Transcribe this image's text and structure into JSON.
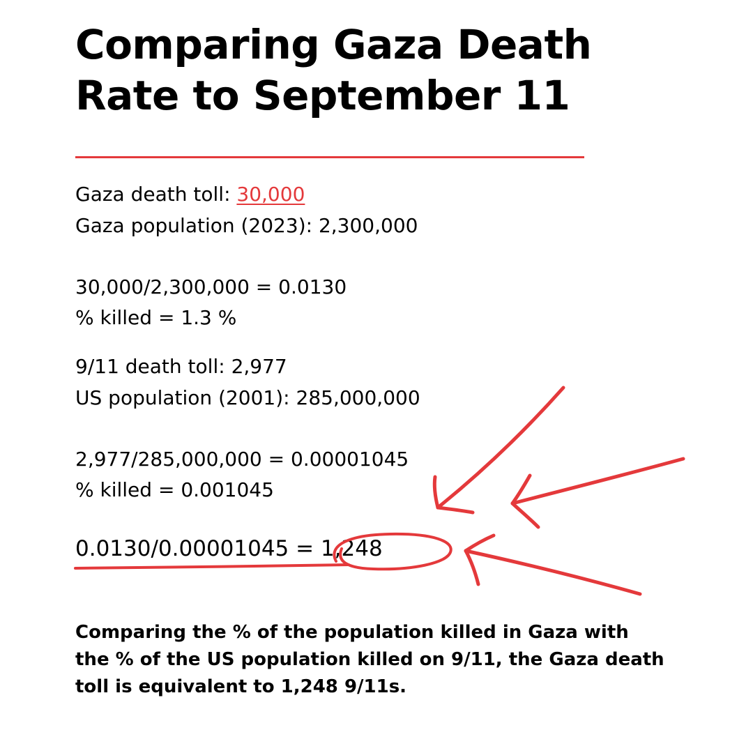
{
  "title": {
    "line1": "Comparing Gaza Death",
    "line2": "Rate to September 11"
  },
  "gaza": {
    "toll_label": "Gaza death toll: ",
    "toll_value": "30,000",
    "population": "Gaza population (2023): 2,300,000",
    "calc": "30,000/2,300,000 = 0.0130",
    "percent": "% killed = 1.3 %"
  },
  "us": {
    "toll": "9/11 death toll: 2,977",
    "population": "US population (2001): 285,000,000",
    "calc": "2,977/285,000,000 = 0.00001045",
    "percent": "% killed = 0.001045"
  },
  "result": "0.0130/0.00001045 = 1,248",
  "conclusion": {
    "line1": "Comparing the % of the population killed in Gaza with",
    "line2": "the % of the US population killed on 9/11, the Gaza death",
    "line3": "toll is equivalent to 1,248 9/11s."
  },
  "colors": {
    "accent": "#e4393b",
    "text": "#000000",
    "background": "#ffffff"
  }
}
